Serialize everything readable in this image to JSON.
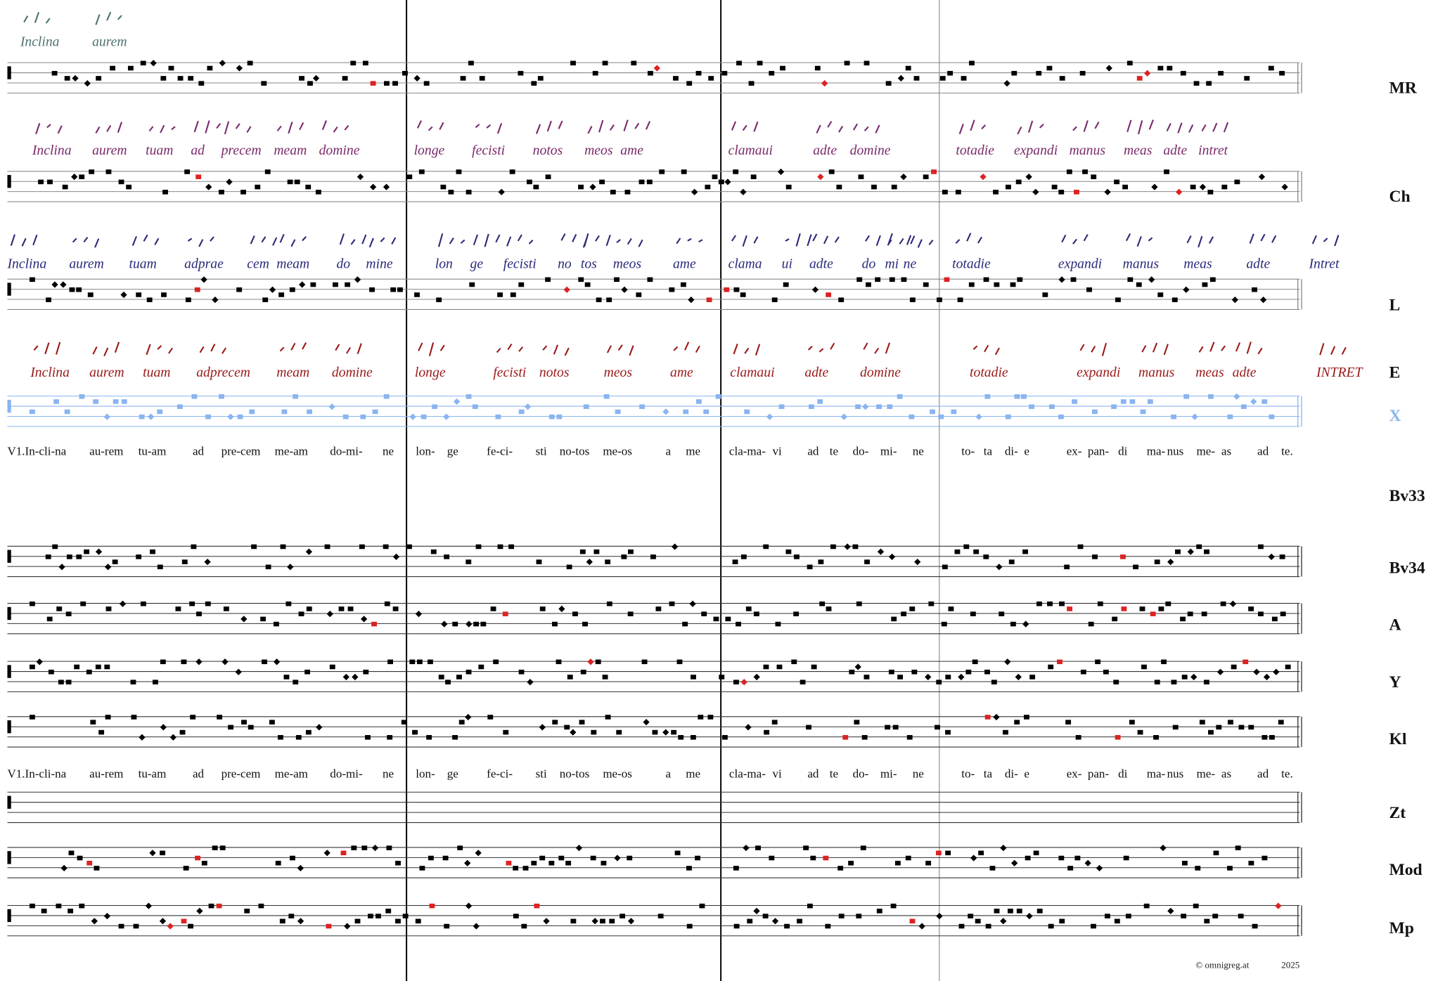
{
  "staff_labels": [
    "MR",
    "Ch",
    "L",
    "E",
    "X",
    "Bv33",
    "Bv34",
    "A",
    "Y",
    "Kl",
    "Zt",
    "Mod",
    "Mp"
  ],
  "text_lines": [
    [
      "V1.In-cli-na",
      "au-rem",
      "tu-am",
      "ad",
      "pre-cem",
      "me-am",
      "do-mi-",
      "ne",
      "lon-",
      "ge",
      "fe-ci-",
      "sti",
      "no-tos",
      "me-os",
      "a",
      "me",
      "cla-ma-",
      "vi",
      "ad",
      "te",
      "do-",
      "mi-",
      "ne",
      "to-",
      "ta",
      "di-",
      "e",
      "ex-",
      "pan-",
      "di",
      "ma-",
      "nus",
      "me-",
      "as",
      "ad",
      "te."
    ],
    [
      "V1.In-cli-na",
      "au-rem",
      "tu-am",
      "ad",
      "pre-cem",
      "me-am",
      "do-mi-",
      "ne",
      "lon-",
      "ge",
      "fe-ci-",
      "sti",
      "no-tos",
      "me-os",
      "a",
      "me",
      "cla-ma-",
      "vi",
      "ad",
      "te",
      "do-",
      "mi-",
      "ne",
      "to-",
      "ta",
      "di-",
      "e",
      "ex-",
      "pan-",
      "di",
      "ma-",
      "nus",
      "me-",
      "as",
      "ad",
      "te."
    ]
  ],
  "manuscript_lines": [
    [
      "Inclina",
      "aurem"
    ],
    [
      "Inclina",
      "aurem",
      "tuam",
      "ad",
      "precem",
      "meam",
      "domine",
      "longe",
      "fecisti",
      "notos",
      "meos",
      "ame",
      "clamaui",
      "adte",
      "domine",
      "totadie",
      "expandi",
      "manus",
      "meas",
      "adte",
      "intret"
    ],
    [
      "Inclina",
      "aurem",
      "tuam",
      "adprae",
      "cem",
      "meam",
      "do",
      "mine",
      "lon",
      "ge",
      "fecisti",
      "no",
      "tos",
      "meos",
      "ame",
      "clama",
      "ui",
      "adte",
      "do",
      "mi",
      "ne",
      "totadie",
      "expandi",
      "manus",
      "meas",
      "adte",
      "Intret"
    ],
    [
      "Inclina",
      "aurem",
      "tuam",
      "adprecem",
      "meam",
      "domine",
      "longe",
      "fecisti",
      "notos",
      "meos",
      "ame",
      "clamaui",
      "adte",
      "domine",
      "totadie",
      "expandi",
      "manus",
      "meas",
      "adte",
      "INTRET"
    ]
  ],
  "footer": {
    "copyright": "©  omnigreg.at",
    "year": "2025"
  }
}
